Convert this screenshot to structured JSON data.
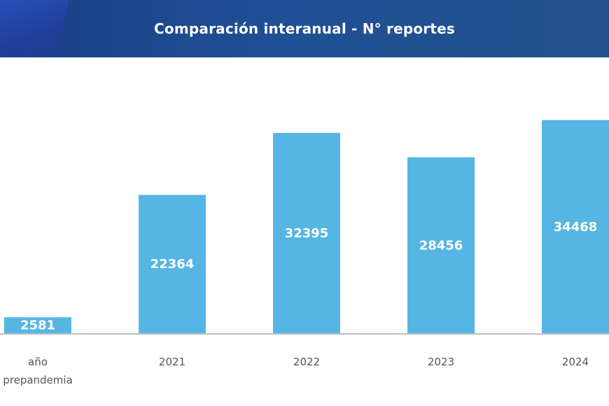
{
  "header": {
    "title": "Comparación interanual - N° reportes"
  },
  "colors": {
    "header_bg": "#1f4f95",
    "bar": "#56b6e3",
    "bar_label": "#ffffff",
    "axis_text": "#555555"
  },
  "chart_data": {
    "type": "bar",
    "title": "Comparación interanual - N° reportes",
    "categories": [
      [
        "año",
        "prepandemia"
      ],
      [
        "2021"
      ],
      [
        "2022"
      ],
      [
        "2023"
      ],
      [
        "2024"
      ]
    ],
    "values": [
      2581,
      22364,
      32395,
      28456,
      34468
    ],
    "data_labels": [
      "2581",
      "22364",
      "32395",
      "28456",
      "34468"
    ],
    "xlabel": "",
    "ylabel": "",
    "ylim": [
      0,
      36000
    ],
    "grid": false,
    "legend": "none"
  }
}
